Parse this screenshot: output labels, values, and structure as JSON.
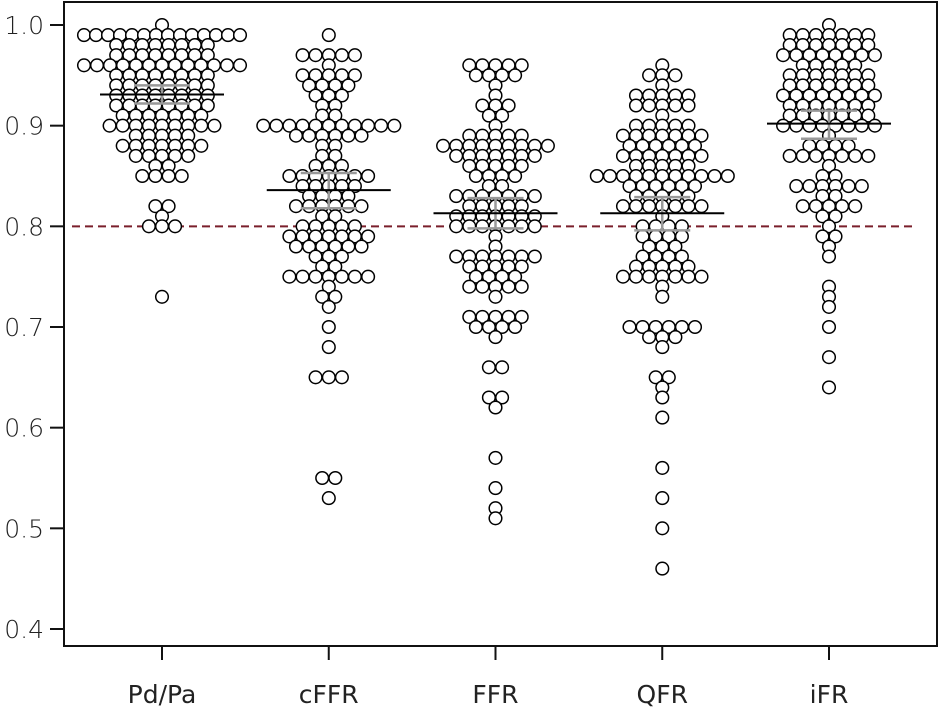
{
  "chart_data": {
    "type": "scatter",
    "subtype": "beeswarm",
    "title": "",
    "xlabel": "",
    "ylabel": "",
    "ylim": [
      0.38,
      1.02
    ],
    "yticks": [
      0.4,
      0.5,
      0.6,
      0.7,
      0.8,
      0.9,
      1.0
    ],
    "ytick_labels": [
      "0.4",
      "0.5",
      "0.6",
      "0.7",
      "0.8",
      "0.9",
      "1.0"
    ],
    "categories": [
      "Pd/Pa",
      "cFFR",
      "FFR",
      "QFR",
      "iFR"
    ],
    "grid": false,
    "legend": "none",
    "reference_line": {
      "value": 0.8,
      "style": "dashed",
      "color": "#7a1f2b"
    },
    "colors": {
      "marker_edge": "#000000",
      "marker_fill": "#ffffff",
      "mean_line": "#000000",
      "ci_line": "#999999",
      "axis": "#000000"
    },
    "series": [
      {
        "name": "Pd/Pa",
        "mean": 0.931,
        "ci": [
          0.922,
          0.94
        ],
        "values": [
          1.0,
          0.99,
          0.99,
          0.99,
          0.99,
          0.99,
          0.99,
          0.99,
          0.99,
          0.99,
          0.99,
          0.99,
          0.99,
          0.99,
          0.99,
          0.98,
          0.98,
          0.98,
          0.98,
          0.98,
          0.98,
          0.98,
          0.98,
          0.97,
          0.97,
          0.97,
          0.97,
          0.97,
          0.97,
          0.97,
          0.97,
          0.96,
          0.96,
          0.96,
          0.96,
          0.96,
          0.96,
          0.96,
          0.96,
          0.96,
          0.96,
          0.96,
          0.96,
          0.96,
          0.95,
          0.95,
          0.95,
          0.95,
          0.95,
          0.95,
          0.95,
          0.95,
          0.94,
          0.94,
          0.94,
          0.94,
          0.94,
          0.94,
          0.94,
          0.94,
          0.93,
          0.93,
          0.93,
          0.93,
          0.93,
          0.93,
          0.93,
          0.93,
          0.92,
          0.92,
          0.92,
          0.92,
          0.92,
          0.92,
          0.92,
          0.92,
          0.91,
          0.91,
          0.91,
          0.91,
          0.91,
          0.91,
          0.91,
          0.9,
          0.9,
          0.9,
          0.9,
          0.9,
          0.9,
          0.9,
          0.9,
          0.9,
          0.89,
          0.89,
          0.89,
          0.89,
          0.89,
          0.88,
          0.88,
          0.88,
          0.88,
          0.88,
          0.88,
          0.88,
          0.87,
          0.87,
          0.87,
          0.87,
          0.87,
          0.86,
          0.86,
          0.85,
          0.85,
          0.85,
          0.85,
          0.82,
          0.82,
          0.81,
          0.8,
          0.8,
          0.8,
          0.73
        ]
      },
      {
        "name": "cFFR",
        "mean": 0.836,
        "ci": [
          0.818,
          0.853
        ],
        "values": [
          0.99,
          0.97,
          0.97,
          0.97,
          0.97,
          0.97,
          0.96,
          0.95,
          0.95,
          0.95,
          0.95,
          0.95,
          0.94,
          0.94,
          0.94,
          0.94,
          0.93,
          0.93,
          0.93,
          0.92,
          0.92,
          0.91,
          0.91,
          0.9,
          0.9,
          0.9,
          0.9,
          0.9,
          0.9,
          0.9,
          0.9,
          0.9,
          0.9,
          0.9,
          0.89,
          0.89,
          0.89,
          0.89,
          0.89,
          0.89,
          0.88,
          0.88,
          0.87,
          0.87,
          0.86,
          0.86,
          0.86,
          0.85,
          0.85,
          0.85,
          0.85,
          0.85,
          0.85,
          0.85,
          0.84,
          0.84,
          0.84,
          0.84,
          0.84,
          0.83,
          0.83,
          0.83,
          0.83,
          0.82,
          0.82,
          0.82,
          0.82,
          0.82,
          0.82,
          0.81,
          0.81,
          0.8,
          0.8,
          0.8,
          0.8,
          0.8,
          0.79,
          0.79,
          0.79,
          0.79,
          0.79,
          0.79,
          0.79,
          0.78,
          0.78,
          0.78,
          0.78,
          0.78,
          0.78,
          0.77,
          0.77,
          0.77,
          0.76,
          0.76,
          0.75,
          0.75,
          0.75,
          0.75,
          0.75,
          0.75,
          0.75,
          0.74,
          0.73,
          0.73,
          0.72,
          0.7,
          0.68,
          0.65,
          0.65,
          0.65,
          0.55,
          0.55,
          0.53
        ]
      },
      {
        "name": "FFR",
        "mean": 0.813,
        "ci": [
          0.798,
          0.828
        ],
        "values": [
          0.96,
          0.96,
          0.96,
          0.96,
          0.96,
          0.95,
          0.95,
          0.95,
          0.95,
          0.94,
          0.93,
          0.92,
          0.92,
          0.92,
          0.91,
          0.91,
          0.9,
          0.89,
          0.89,
          0.89,
          0.89,
          0.89,
          0.88,
          0.88,
          0.88,
          0.88,
          0.88,
          0.88,
          0.88,
          0.88,
          0.88,
          0.87,
          0.87,
          0.87,
          0.87,
          0.87,
          0.87,
          0.87,
          0.86,
          0.86,
          0.86,
          0.86,
          0.86,
          0.85,
          0.85,
          0.85,
          0.85,
          0.84,
          0.84,
          0.83,
          0.83,
          0.83,
          0.83,
          0.83,
          0.83,
          0.83,
          0.82,
          0.82,
          0.82,
          0.82,
          0.82,
          0.81,
          0.81,
          0.81,
          0.81,
          0.81,
          0.81,
          0.81,
          0.8,
          0.8,
          0.8,
          0.8,
          0.8,
          0.8,
          0.8,
          0.79,
          0.78,
          0.77,
          0.77,
          0.77,
          0.77,
          0.77,
          0.77,
          0.77,
          0.76,
          0.76,
          0.76,
          0.76,
          0.76,
          0.75,
          0.75,
          0.75,
          0.75,
          0.74,
          0.74,
          0.74,
          0.74,
          0.74,
          0.73,
          0.71,
          0.71,
          0.71,
          0.71,
          0.71,
          0.7,
          0.7,
          0.7,
          0.7,
          0.69,
          0.66,
          0.66,
          0.63,
          0.63,
          0.62,
          0.57,
          0.54,
          0.52,
          0.51
        ]
      },
      {
        "name": "QFR",
        "mean": 0.813,
        "ci": [
          0.796,
          0.829
        ],
        "values": [
          0.96,
          0.95,
          0.95,
          0.95,
          0.94,
          0.93,
          0.93,
          0.93,
          0.93,
          0.93,
          0.92,
          0.92,
          0.92,
          0.92,
          0.92,
          0.91,
          0.9,
          0.9,
          0.9,
          0.9,
          0.9,
          0.89,
          0.89,
          0.89,
          0.89,
          0.89,
          0.89,
          0.89,
          0.88,
          0.88,
          0.88,
          0.88,
          0.88,
          0.88,
          0.87,
          0.87,
          0.87,
          0.87,
          0.87,
          0.87,
          0.87,
          0.86,
          0.86,
          0.86,
          0.86,
          0.86,
          0.85,
          0.85,
          0.85,
          0.85,
          0.85,
          0.85,
          0.85,
          0.85,
          0.85,
          0.85,
          0.85,
          0.84,
          0.84,
          0.84,
          0.84,
          0.84,
          0.84,
          0.83,
          0.83,
          0.83,
          0.83,
          0.83,
          0.82,
          0.82,
          0.82,
          0.82,
          0.82,
          0.82,
          0.82,
          0.81,
          0.8,
          0.8,
          0.8,
          0.8,
          0.79,
          0.79,
          0.79,
          0.79,
          0.78,
          0.78,
          0.78,
          0.77,
          0.77,
          0.77,
          0.77,
          0.76,
          0.76,
          0.76,
          0.76,
          0.76,
          0.75,
          0.75,
          0.75,
          0.75,
          0.75,
          0.75,
          0.75,
          0.74,
          0.73,
          0.7,
          0.7,
          0.7,
          0.7,
          0.7,
          0.7,
          0.69,
          0.69,
          0.69,
          0.68,
          0.65,
          0.65,
          0.64,
          0.63,
          0.61,
          0.56,
          0.53,
          0.5,
          0.46
        ]
      },
      {
        "name": "iFR",
        "mean": 0.902,
        "ci": [
          0.887,
          0.915
        ],
        "values": [
          1.0,
          0.99,
          0.99,
          0.99,
          0.99,
          0.99,
          0.99,
          0.99,
          0.98,
          0.98,
          0.98,
          0.98,
          0.98,
          0.98,
          0.98,
          0.97,
          0.97,
          0.97,
          0.97,
          0.97,
          0.97,
          0.97,
          0.97,
          0.96,
          0.96,
          0.96,
          0.96,
          0.96,
          0.95,
          0.95,
          0.95,
          0.95,
          0.95,
          0.95,
          0.95,
          0.94,
          0.94,
          0.94,
          0.94,
          0.94,
          0.94,
          0.94,
          0.93,
          0.93,
          0.93,
          0.93,
          0.93,
          0.93,
          0.93,
          0.93,
          0.92,
          0.92,
          0.92,
          0.92,
          0.92,
          0.92,
          0.92,
          0.91,
          0.91,
          0.91,
          0.91,
          0.91,
          0.91,
          0.91,
          0.9,
          0.9,
          0.9,
          0.9,
          0.9,
          0.9,
          0.9,
          0.9,
          0.89,
          0.88,
          0.88,
          0.88,
          0.88,
          0.87,
          0.87,
          0.87,
          0.87,
          0.87,
          0.87,
          0.87,
          0.86,
          0.85,
          0.85,
          0.84,
          0.84,
          0.84,
          0.84,
          0.84,
          0.84,
          0.83,
          0.83,
          0.82,
          0.82,
          0.82,
          0.82,
          0.82,
          0.81,
          0.81,
          0.8,
          0.79,
          0.79,
          0.78,
          0.77,
          0.74,
          0.73,
          0.72,
          0.7,
          0.67,
          0.64
        ]
      }
    ]
  }
}
